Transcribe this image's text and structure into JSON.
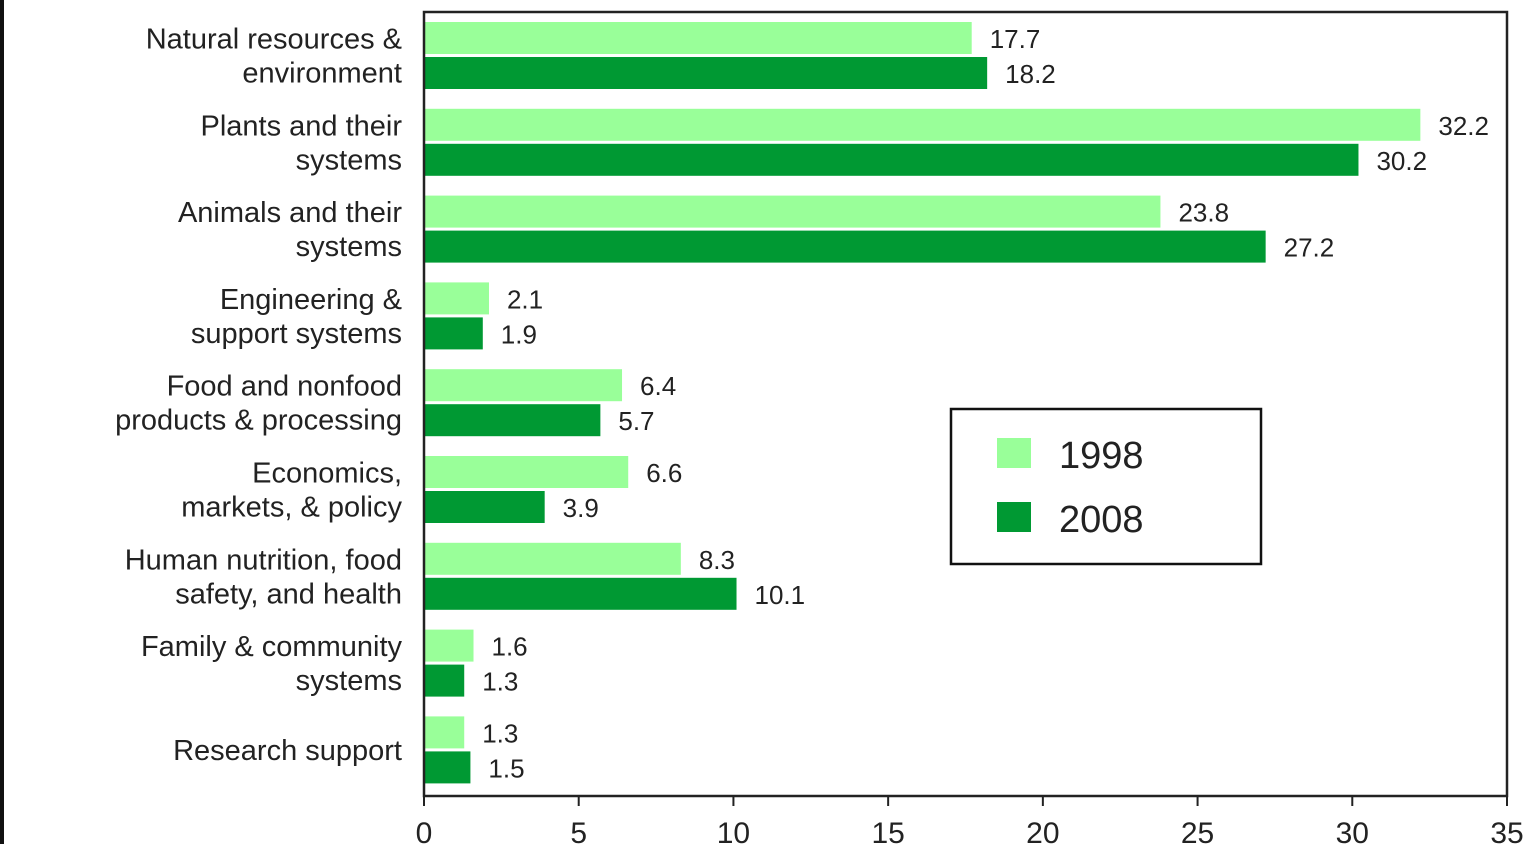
{
  "chart_data": {
    "type": "bar",
    "orientation": "horizontal",
    "categories": [
      [
        "Natural resources &",
        "environment"
      ],
      [
        "Plants and their",
        "systems"
      ],
      [
        "Animals and their",
        "systems"
      ],
      [
        "Engineering &",
        "support systems"
      ],
      [
        "Food and nonfood",
        "products & processing"
      ],
      [
        "Economics,",
        "markets, & policy"
      ],
      [
        "Human nutrition, food",
        "safety, and health"
      ],
      [
        "Family & community",
        "systems"
      ],
      [
        "Research support"
      ]
    ],
    "series": [
      {
        "name": "1998",
        "color": "#99ff99",
        "values": [
          17.7,
          32.2,
          23.8,
          2.1,
          6.4,
          6.6,
          8.3,
          1.6,
          1.3
        ],
        "labels": [
          "17.7",
          "32.2",
          "23.8",
          "2.1",
          "6.4",
          "6.6",
          "8.3",
          "1.6",
          "1.3"
        ]
      },
      {
        "name": "2008",
        "color": "#009933",
        "values": [
          18.2,
          30.2,
          27.2,
          1.9,
          5.7,
          3.9,
          10.1,
          1.3,
          1.5
        ],
        "labels": [
          "18.2",
          "30.2",
          "27.2",
          "1.9",
          "5.7",
          "3.9",
          "10.1",
          "1.3",
          "1.5"
        ]
      }
    ],
    "xlim": [
      0,
      35
    ],
    "xticks": [
      0,
      5,
      10,
      15,
      20,
      25,
      30,
      35
    ],
    "xtick_labels": [
      "0",
      "5",
      "10",
      "15",
      "20",
      "25",
      "30",
      "35"
    ],
    "grid": false,
    "legend_position": "center-right",
    "title": "",
    "xlabel": "",
    "ylabel": ""
  }
}
